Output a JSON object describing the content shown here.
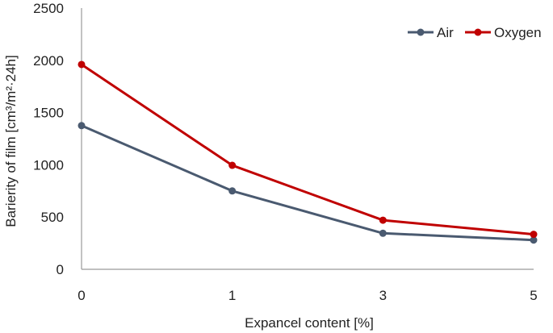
{
  "chart_data": {
    "type": "line",
    "categories": [
      "0",
      "1",
      "3",
      "5"
    ],
    "xlabel": "Expancel content [%]",
    "ylabel": "Barierity of film [cm³/m²·24h]",
    "ylim": [
      0,
      2500
    ],
    "yticks": [
      "0",
      "500",
      "1000",
      "1500",
      "2000",
      "2500"
    ],
    "grid": false,
    "legend_position": "top-right",
    "series": [
      {
        "name": "Air",
        "color": "#4a5a70",
        "values": [
          1375,
          750,
          345,
          280
        ]
      },
      {
        "name": "Oxygen",
        "color": "#c00000",
        "values": [
          1960,
          995,
          470,
          335
        ]
      }
    ]
  }
}
